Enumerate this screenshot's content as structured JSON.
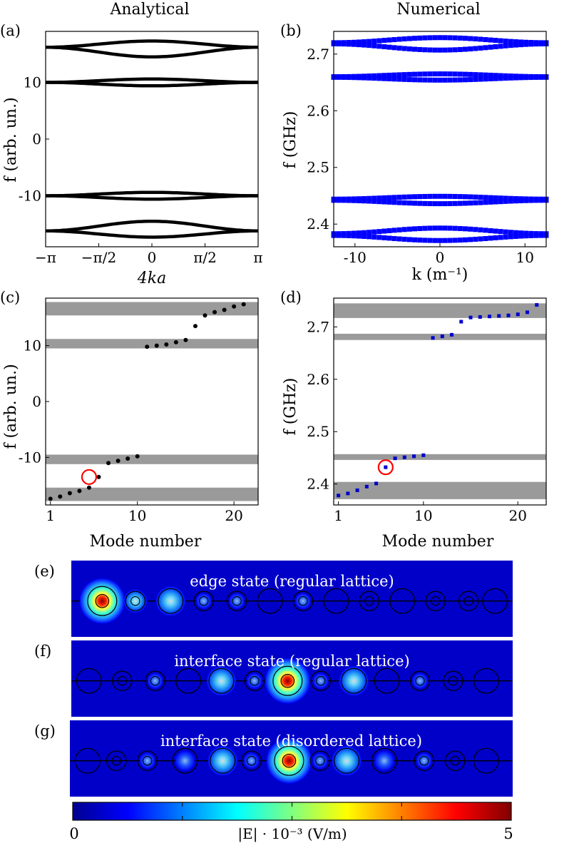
{
  "headers": {
    "left": "Analytical",
    "right": "Numerical"
  },
  "panel_labels": [
    "(a)",
    "(b)",
    "(c)",
    "(d)",
    "(e)",
    "(f)",
    "(g)"
  ],
  "chart_data": [
    {
      "id": "a",
      "type": "line",
      "title": "Analytical",
      "xlabel": "4ka",
      "ylabel": "f (arb. un.)",
      "xlim": [
        -3.14159,
        3.14159
      ],
      "ylim": [
        -19,
        19
      ],
      "xticks": [
        {
          "v": -3.14159,
          "label": "−π"
        },
        {
          "v": -1.5708,
          "label": "−π/2"
        },
        {
          "v": 0,
          "label": "0"
        },
        {
          "v": 1.5708,
          "label": "π/2"
        },
        {
          "v": 3.14159,
          "label": "π"
        }
      ],
      "yticks": [
        {
          "v": -10,
          "label": "-10"
        },
        {
          "v": 0,
          "label": "0"
        },
        {
          "v": 10,
          "label": "10"
        }
      ],
      "bands": [
        {
          "edge": 16.2,
          "center": 14.5
        },
        {
          "edge": 16.2,
          "center": 17.3
        },
        {
          "edge": 10.0,
          "center": 9.4
        },
        {
          "edge": 10.0,
          "center": 10.6
        },
        {
          "edge": -10.0,
          "center": -9.4
        },
        {
          "edge": -10.0,
          "center": -10.6
        },
        {
          "edge": -16.2,
          "center": -14.5
        },
        {
          "edge": -16.2,
          "center": -17.3
        }
      ]
    },
    {
      "id": "b",
      "type": "scatter",
      "title": "Numerical",
      "xlabel": "k (m⁻¹)",
      "ylabel": "f (GHz)",
      "xlim": [
        -12.5,
        12.5
      ],
      "ylim": [
        2.36,
        2.74
      ],
      "xticks": [
        {
          "v": -10,
          "label": "-10"
        },
        {
          "v": 0,
          "label": "0"
        },
        {
          "v": 10,
          "label": "10"
        }
      ],
      "yticks": [
        {
          "v": 2.4,
          "label": "2.4"
        },
        {
          "v": 2.5,
          "label": "2.5"
        },
        {
          "v": 2.6,
          "label": "2.6"
        },
        {
          "v": 2.7,
          "label": "2.7"
        }
      ],
      "color": "#0000ff",
      "bands": [
        {
          "edge": 2.72,
          "center": 2.729
        },
        {
          "edge": 2.718,
          "center": 2.707
        },
        {
          "edge": 2.66,
          "center": 2.665
        },
        {
          "edge": 2.659,
          "center": 2.654
        },
        {
          "edge": 2.444,
          "center": 2.449
        },
        {
          "edge": 2.442,
          "center": 2.436
        },
        {
          "edge": 2.383,
          "center": 2.393
        },
        {
          "edge": 2.38,
          "center": 2.371
        }
      ]
    },
    {
      "id": "c",
      "type": "scatter",
      "xlabel": "Mode number",
      "ylabel": "f (arb. un.)",
      "xlim": [
        0.5,
        22.5
      ],
      "ylim": [
        -18.5,
        18.5
      ],
      "xticks": [
        {
          "v": 1,
          "label": "1"
        },
        {
          "v": 10,
          "label": "10"
        },
        {
          "v": 20,
          "label": "20"
        }
      ],
      "yticks": [
        {
          "v": -10,
          "label": "-10"
        },
        {
          "v": 0,
          "label": "0"
        },
        {
          "v": 10,
          "label": "10"
        }
      ],
      "gaps": [
        [
          15.4,
          17.8
        ],
        [
          9.5,
          11.2
        ],
        [
          -11.2,
          -9.5
        ],
        [
          -17.8,
          -15.4
        ]
      ],
      "x": [
        1,
        2,
        3,
        4,
        5,
        6,
        7,
        8,
        9,
        10,
        11,
        12,
        13,
        14,
        15,
        16,
        17,
        18,
        19,
        20,
        21
      ],
      "y": [
        -17.4,
        -17.0,
        -16.4,
        -16.0,
        -15.4,
        -13.5,
        -11.0,
        -10.6,
        -10.2,
        -9.8,
        9.8,
        10.0,
        10.2,
        10.6,
        11.0,
        13.5,
        15.4,
        16.0,
        16.4,
        17.0,
        17.4
      ],
      "highlight": {
        "x": 5,
        "y": -13.5,
        "color": "#ff0000"
      }
    },
    {
      "id": "d",
      "type": "scatter",
      "xlabel": "Mode number",
      "ylabel": "f (GHz)",
      "xlim": [
        0.5,
        23
      ],
      "ylim": [
        2.36,
        2.755
      ],
      "xticks": [
        {
          "v": 1,
          "label": "1"
        },
        {
          "v": 10,
          "label": "10"
        },
        {
          "v": 20,
          "label": "20"
        }
      ],
      "yticks": [
        {
          "v": 2.4,
          "label": "2.4"
        },
        {
          "v": 2.5,
          "label": "2.5"
        },
        {
          "v": 2.6,
          "label": "2.6"
        },
        {
          "v": 2.7,
          "label": "2.7"
        }
      ],
      "color": "#0000cc",
      "gaps": [
        [
          2.717,
          2.745
        ],
        [
          2.675,
          2.687
        ],
        [
          2.446,
          2.457
        ],
        [
          2.371,
          2.404
        ]
      ],
      "x": [
        1,
        2,
        3,
        4,
        5,
        6,
        7,
        8,
        9,
        10,
        11,
        12,
        13,
        14,
        15,
        16,
        17,
        18,
        19,
        20,
        21,
        22
      ],
      "y": [
        2.378,
        2.382,
        2.388,
        2.395,
        2.401,
        2.432,
        2.449,
        2.451,
        2.453,
        2.455,
        2.679,
        2.682,
        2.685,
        2.71,
        2.718,
        2.719,
        2.72,
        2.721,
        2.722,
        2.724,
        2.728,
        2.742
      ],
      "highlight": {
        "x": 6,
        "y": 2.432,
        "color": "#ff0000"
      }
    }
  ],
  "field_maps": [
    {
      "id": "e",
      "label": "edge state (regular lattice)",
      "resonators": [
        {
          "x": 0.07,
          "r": 0.033,
          "inner": true,
          "amp": 1.0
        },
        {
          "x": 0.145,
          "r": 0.022,
          "inner": true,
          "amp": 0.55
        },
        {
          "x": 0.225,
          "r": 0.028,
          "inner": false,
          "amp": 0.55
        },
        {
          "x": 0.3,
          "r": 0.022,
          "inner": true,
          "amp": 0.18
        },
        {
          "x": 0.375,
          "r": 0.022,
          "inner": true,
          "amp": 0.28
        },
        {
          "x": 0.45,
          "r": 0.028,
          "inner": false,
          "amp": 0.05
        },
        {
          "x": 0.525,
          "r": 0.022,
          "inner": true,
          "amp": 0.12
        },
        {
          "x": 0.6,
          "r": 0.028,
          "inner": false,
          "amp": 0.04
        },
        {
          "x": 0.675,
          "r": 0.022,
          "inner": true,
          "amp": 0.05
        },
        {
          "x": 0.75,
          "r": 0.028,
          "inner": false,
          "amp": 0.0
        },
        {
          "x": 0.825,
          "r": 0.022,
          "inner": true,
          "amp": 0.03
        },
        {
          "x": 0.9,
          "r": 0.022,
          "inner": true,
          "amp": 0.0
        },
        {
          "x": 0.96,
          "r": 0.028,
          "inner": false,
          "amp": 0.0
        }
      ]
    },
    {
      "id": "f",
      "label": "interface state (regular lattice)",
      "resonators": [
        {
          "x": 0.04,
          "r": 0.028,
          "inner": false,
          "amp": 0.0
        },
        {
          "x": 0.115,
          "r": 0.022,
          "inner": true,
          "amp": 0.05
        },
        {
          "x": 0.19,
          "r": 0.022,
          "inner": true,
          "amp": 0.15
        },
        {
          "x": 0.265,
          "r": 0.028,
          "inner": false,
          "amp": 0.05
        },
        {
          "x": 0.34,
          "r": 0.028,
          "inner": false,
          "amp": 0.55
        },
        {
          "x": 0.415,
          "r": 0.022,
          "inner": true,
          "amp": 0.3
        },
        {
          "x": 0.49,
          "r": 0.033,
          "inner": true,
          "amp": 1.0
        },
        {
          "x": 0.565,
          "r": 0.022,
          "inner": true,
          "amp": 0.3
        },
        {
          "x": 0.64,
          "r": 0.028,
          "inner": false,
          "amp": 0.55
        },
        {
          "x": 0.715,
          "r": 0.028,
          "inner": false,
          "amp": 0.05
        },
        {
          "x": 0.79,
          "r": 0.022,
          "inner": true,
          "amp": 0.15
        },
        {
          "x": 0.865,
          "r": 0.022,
          "inner": true,
          "amp": 0.05
        },
        {
          "x": 0.94,
          "r": 0.028,
          "inner": false,
          "amp": 0.0
        }
      ]
    },
    {
      "id": "g",
      "label": "interface state (disordered lattice)",
      "resonators": [
        {
          "x": 0.04,
          "r": 0.028,
          "inner": false,
          "amp": 0.0
        },
        {
          "x": 0.105,
          "r": 0.022,
          "inner": true,
          "amp": 0.0
        },
        {
          "x": 0.175,
          "r": 0.022,
          "inner": true,
          "amp": 0.15
        },
        {
          "x": 0.26,
          "r": 0.028,
          "inner": false,
          "amp": 0.1
        },
        {
          "x": 0.345,
          "r": 0.028,
          "inner": false,
          "amp": 0.55
        },
        {
          "x": 0.41,
          "r": 0.022,
          "inner": true,
          "amp": 0.25
        },
        {
          "x": 0.495,
          "r": 0.033,
          "inner": true,
          "amp": 1.0
        },
        {
          "x": 0.565,
          "r": 0.022,
          "inner": true,
          "amp": 0.25
        },
        {
          "x": 0.625,
          "r": 0.028,
          "inner": false,
          "amp": 0.55
        },
        {
          "x": 0.71,
          "r": 0.028,
          "inner": false,
          "amp": 0.1
        },
        {
          "x": 0.8,
          "r": 0.022,
          "inner": true,
          "amp": 0.15
        },
        {
          "x": 0.87,
          "r": 0.022,
          "inner": true,
          "amp": 0.0
        },
        {
          "x": 0.94,
          "r": 0.028,
          "inner": false,
          "amp": 0.0
        }
      ]
    }
  ],
  "colorbar": {
    "min_label": "0",
    "max_label": "5",
    "title": "|E| · 10⁻³ (V/m)",
    "stops": [
      "#00008f",
      "#0000ff",
      "#0080ff",
      "#00ffff",
      "#80ff80",
      "#ffff00",
      "#ff8000",
      "#ff0000",
      "#800000"
    ]
  }
}
